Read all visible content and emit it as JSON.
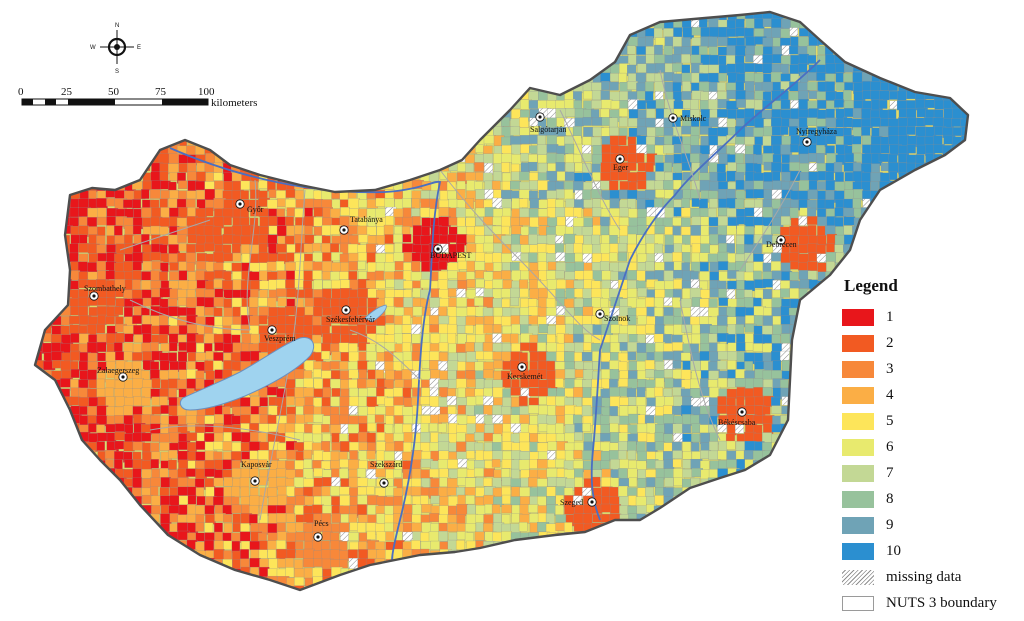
{
  "map": {
    "compass": {
      "n": "N",
      "s": "S",
      "e": "E",
      "w": "W"
    },
    "scale_bar": {
      "ticks": [
        "0",
        "25",
        "50",
        "75",
        "100"
      ],
      "unit": "kilometers"
    },
    "cities": [
      {
        "name": "Salgótarján",
        "key": "salgotarjan"
      },
      {
        "name": "Miskolc",
        "key": "miskolc"
      },
      {
        "name": "Nyíregyháza",
        "key": "nyiregyhaza"
      },
      {
        "name": "Eger",
        "key": "eger"
      },
      {
        "name": "Győr",
        "key": "gyor"
      },
      {
        "name": "Tatabánya",
        "key": "tatabanya"
      },
      {
        "name": "BUDAPEST",
        "key": "budapest"
      },
      {
        "name": "Debrecen",
        "key": "debrecen"
      },
      {
        "name": "Szombathely",
        "key": "szombathely"
      },
      {
        "name": "Székesfehérvár",
        "key": "szekesfehervar"
      },
      {
        "name": "Szolnok",
        "key": "szolnok"
      },
      {
        "name": "Veszprém",
        "key": "veszprem"
      },
      {
        "name": "Zalaegerszeg",
        "key": "zalaegerszeg"
      },
      {
        "name": "Kecskemét",
        "key": "kecskemet"
      },
      {
        "name": "Békéscsaba",
        "key": "bekescsaba"
      },
      {
        "name": "Kaposvár",
        "key": "kaposvar"
      },
      {
        "name": "Szekszárd",
        "key": "szekszard"
      },
      {
        "name": "Szeged",
        "key": "szeged"
      },
      {
        "name": "Pécs",
        "key": "pecs"
      }
    ]
  },
  "legend": {
    "title": "Legend",
    "classes": [
      {
        "label": "1",
        "color": "#e8161b"
      },
      {
        "label": "2",
        "color": "#f25a22"
      },
      {
        "label": "3",
        "color": "#f7883a"
      },
      {
        "label": "4",
        "color": "#fbae45"
      },
      {
        "label": "5",
        "color": "#fde55a"
      },
      {
        "label": "6",
        "color": "#e8ea6e"
      },
      {
        "label": "7",
        "color": "#c3d895"
      },
      {
        "label": "8",
        "color": "#97c29c"
      },
      {
        "label": "9",
        "color": "#6fa3b6"
      },
      {
        "label": "10",
        "color": "#2b8fd0"
      }
    ],
    "missing_label": "missing data",
    "nuts_label": "NUTS 3 boundary"
  }
}
